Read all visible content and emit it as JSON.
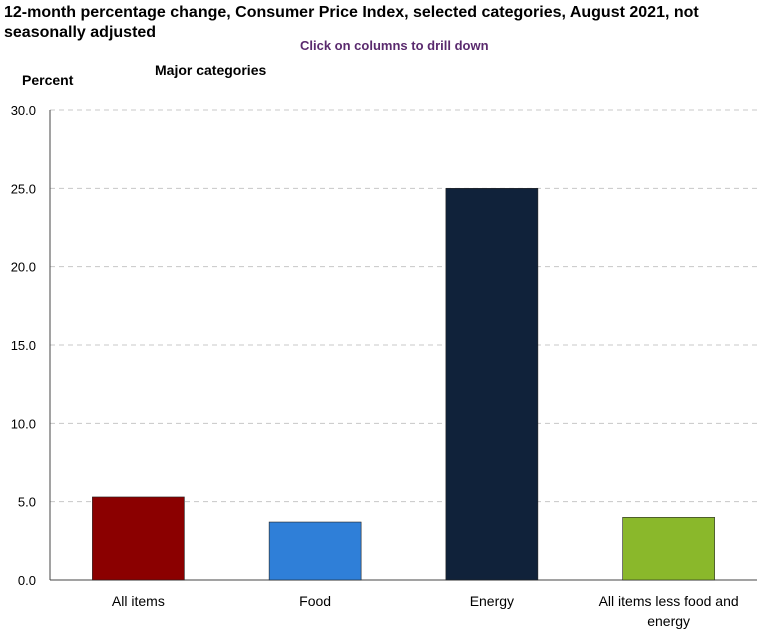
{
  "title": "12-month percentage change, Consumer Price Index, selected categories, August 2021, not seasonally adjusted",
  "subtitle": "Click on columns to drill down",
  "category_heading": "Major categories",
  "chart_data": {
    "type": "bar",
    "ylabel": "Percent",
    "xlabel": "",
    "ylim": [
      0,
      30
    ],
    "yticks": [
      "0.0",
      "5.0",
      "10.0",
      "15.0",
      "20.0",
      "25.0",
      "30.0"
    ],
    "categories": [
      "All items",
      "Food",
      "Energy",
      "All items less food and energy"
    ],
    "category_lines": [
      [
        "All items"
      ],
      [
        "Food"
      ],
      [
        "Energy"
      ],
      [
        "All items less food and",
        "energy"
      ]
    ],
    "values": [
      5.3,
      3.7,
      25.0,
      4.0
    ],
    "colors": [
      "#8b0000",
      "#2f7fd8",
      "#10223a",
      "#8ab82b"
    ],
    "grid": true
  }
}
